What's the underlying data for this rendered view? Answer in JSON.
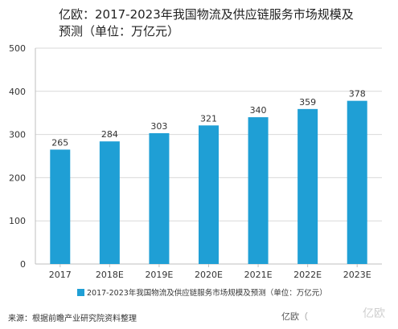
{
  "chart_data": {
    "type": "bar",
    "title": "亿欧：2017-2023年我国物流及供应链服务市场规模及预测（单位：万亿元）",
    "categories": [
      "2017",
      "2018E",
      "2019E",
      "2020E",
      "2021E",
      "2022E",
      "2023E"
    ],
    "series": [
      {
        "name": "2017-2023年我国物流及供应链服务市场规模及预测（单位：万亿元）",
        "values": [
          265,
          284,
          303,
          321,
          340,
          359,
          378
        ]
      }
    ],
    "ylim": [
      0,
      500
    ],
    "yticks": [
      0,
      100,
      200,
      300,
      400,
      500
    ],
    "grid": true,
    "legend_position": "bottom",
    "bar_color": "#1f9fd5"
  },
  "footer": {
    "source": "来源：根据前瞻产业研究院资料整理",
    "brand": "亿欧",
    "brand_paren": "（",
    "watermark": "亿欧"
  }
}
